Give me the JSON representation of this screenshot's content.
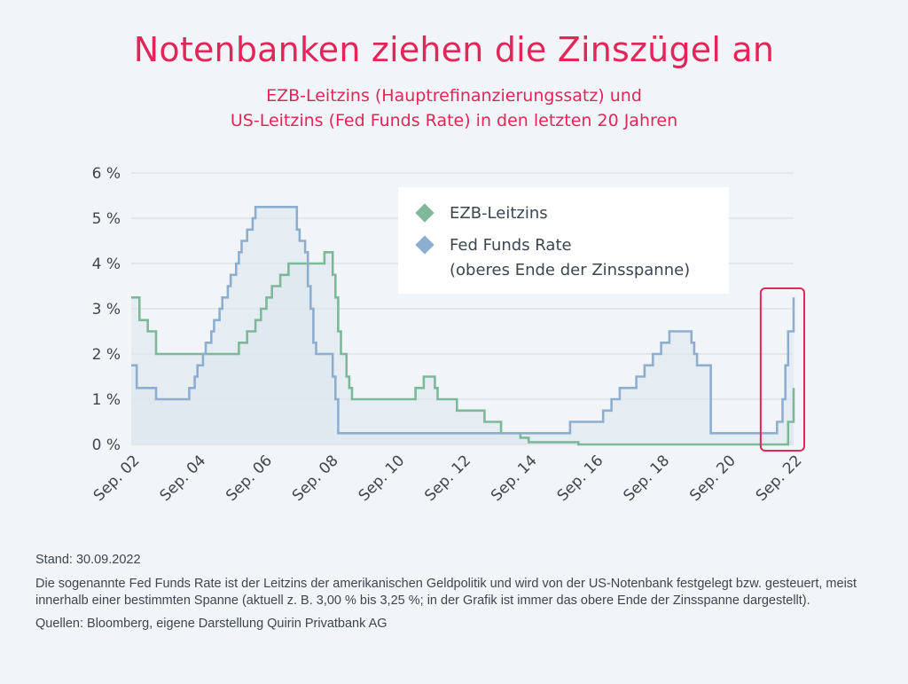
{
  "header": {
    "title": "Notenbanken ziehen die Zinszügel an",
    "subtitle_line1": "EZB-Leitzins (Hauptrefinanzierungssatz) und",
    "subtitle_line2": "US-Leitzins (Fed Funds Rate) in den letzten 20 Jahren"
  },
  "footer": {
    "stand": "Stand: 30.09.2022",
    "note": "Die sogenannte Fed Funds Rate ist der Leitzins der amerikanischen Geldpolitik und wird von der US-Notenbank festgelegt bzw. gesteuert, meist innerhalb einer bestimmten Spanne (aktuell z. B. 3,00 % bis 3,25 %; in der Grafik ist immer das obere Ende der Zinsspanne dargestellt).",
    "sources": "Quellen: Bloomberg, eigene Darstellung Quirin Privatbank AG"
  },
  "colors": {
    "title": "#e0265a",
    "ezb": "#7db89a",
    "fed": "#8eaed0",
    "fed_fill": "#dde5ee",
    "grid": "#d3d9df",
    "highlight": "#e0265a"
  },
  "chart_data": {
    "type": "line",
    "title": "Notenbanken ziehen die Zinszügel an",
    "subtitle": "EZB-Leitzins (Hauptrefinanzierungssatz) und US-Leitzins (Fed Funds Rate) in den letzten 20 Jahren",
    "x_range": [
      "2002-09",
      "2022-09"
    ],
    "x_ticks": [
      "Sep. 02",
      "Sep. 04",
      "Sep. 06",
      "Sep. 08",
      "Sep. 10",
      "Sep. 12",
      "Sep. 14",
      "Sep. 16",
      "Sep. 18",
      "Sep. 20",
      "Sep. 22"
    ],
    "y_ticks": [
      "0 %",
      "1 %",
      "2 %",
      "3 %",
      "4 %",
      "5 %",
      "6 %"
    ],
    "ylim": [
      0,
      6
    ],
    "grid": true,
    "legend_position": "top-right",
    "legend": [
      {
        "label": "EZB-Leitzins",
        "series": "ezb"
      },
      {
        "label": "Fed Funds Rate",
        "label2": "(oberes Ende der Zinsspanne)",
        "series": "fed"
      }
    ],
    "highlight": {
      "from": "2021-11",
      "to": "2022-09",
      "note": "recent rate hikes"
    },
    "series": [
      {
        "key": "ezb",
        "name": "EZB-Leitzins",
        "color": "#7db89a",
        "steps": [
          [
            "2002-09",
            3.25
          ],
          [
            "2002-12",
            2.75
          ],
          [
            "2003-03",
            2.5
          ],
          [
            "2003-06",
            2.0
          ],
          [
            "2005-12",
            2.25
          ],
          [
            "2006-03",
            2.5
          ],
          [
            "2006-06",
            2.75
          ],
          [
            "2006-08",
            3.0
          ],
          [
            "2006-10",
            3.25
          ],
          [
            "2006-12",
            3.5
          ],
          [
            "2007-03",
            3.75
          ],
          [
            "2007-06",
            4.0
          ],
          [
            "2008-07",
            4.25
          ],
          [
            "2008-10",
            3.75
          ],
          [
            "2008-11",
            3.25
          ],
          [
            "2008-12",
            2.5
          ],
          [
            "2009-01",
            2.0
          ],
          [
            "2009-03",
            1.5
          ],
          [
            "2009-04",
            1.25
          ],
          [
            "2009-05",
            1.0
          ],
          [
            "2011-04",
            1.25
          ],
          [
            "2011-07",
            1.5
          ],
          [
            "2011-11",
            1.25
          ],
          [
            "2011-12",
            1.0
          ],
          [
            "2012-07",
            0.75
          ],
          [
            "2013-05",
            0.5
          ],
          [
            "2013-11",
            0.25
          ],
          [
            "2014-06",
            0.15
          ],
          [
            "2014-09",
            0.05
          ],
          [
            "2016-03",
            0.0
          ],
          [
            "2022-07",
            0.5
          ],
          [
            "2022-09",
            1.25
          ]
        ]
      },
      {
        "key": "fed",
        "name": "Fed Funds Rate",
        "color": "#8eaed0",
        "steps": [
          [
            "2002-09",
            1.75
          ],
          [
            "2002-11",
            1.25
          ],
          [
            "2003-06",
            1.0
          ],
          [
            "2004-06",
            1.25
          ],
          [
            "2004-08",
            1.5
          ],
          [
            "2004-09",
            1.75
          ],
          [
            "2004-11",
            2.0
          ],
          [
            "2004-12",
            2.25
          ],
          [
            "2005-02",
            2.5
          ],
          [
            "2005-03",
            2.75
          ],
          [
            "2005-05",
            3.0
          ],
          [
            "2005-06",
            3.25
          ],
          [
            "2005-08",
            3.5
          ],
          [
            "2005-09",
            3.75
          ],
          [
            "2005-11",
            4.0
          ],
          [
            "2005-12",
            4.25
          ],
          [
            "2006-01",
            4.5
          ],
          [
            "2006-03",
            4.75
          ],
          [
            "2006-05",
            5.0
          ],
          [
            "2006-06",
            5.25
          ],
          [
            "2007-09",
            4.75
          ],
          [
            "2007-10",
            4.5
          ],
          [
            "2007-12",
            4.25
          ],
          [
            "2008-01",
            3.5
          ],
          [
            "2008-02",
            3.0
          ],
          [
            "2008-03",
            2.25
          ],
          [
            "2008-04",
            2.0
          ],
          [
            "2008-10",
            1.5
          ],
          [
            "2008-11",
            1.0
          ],
          [
            "2008-12",
            0.25
          ],
          [
            "2015-12",
            0.5
          ],
          [
            "2016-12",
            0.75
          ],
          [
            "2017-03",
            1.0
          ],
          [
            "2017-06",
            1.25
          ],
          [
            "2017-12",
            1.5
          ],
          [
            "2018-03",
            1.75
          ],
          [
            "2018-06",
            2.0
          ],
          [
            "2018-09",
            2.25
          ],
          [
            "2018-12",
            2.5
          ],
          [
            "2019-08",
            2.25
          ],
          [
            "2019-09",
            2.0
          ],
          [
            "2019-10",
            1.75
          ],
          [
            "2020-03",
            0.25
          ],
          [
            "2022-03",
            0.5
          ],
          [
            "2022-05",
            1.0
          ],
          [
            "2022-06",
            1.75
          ],
          [
            "2022-07",
            2.5
          ],
          [
            "2022-09",
            3.25
          ]
        ]
      }
    ]
  }
}
